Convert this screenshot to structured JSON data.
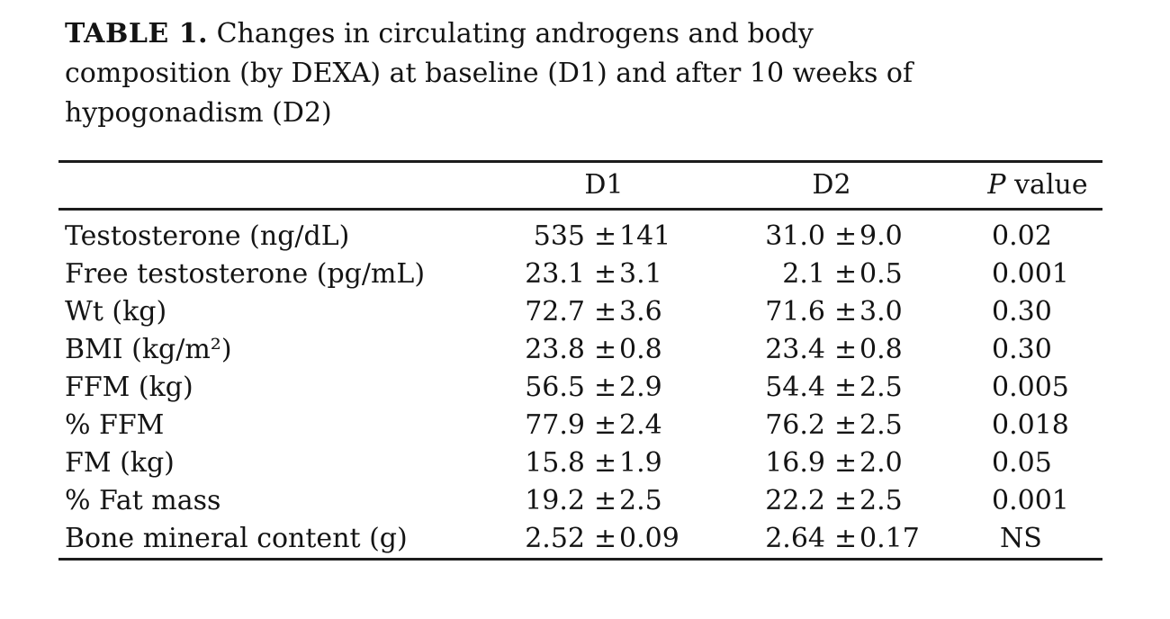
{
  "table": {
    "label": "TABLE 1.",
    "caption_lines": [
      "Changes in circulating androgens and body",
      "composition (by DEXA) at baseline (D1) and after 10 weeks of",
      "hypogonadism (D2)"
    ],
    "header": {
      "d1": "D1",
      "d2": "D2",
      "p_italic": "P",
      "p_rest": " value"
    },
    "plus_minus": "±",
    "rows": [
      {
        "label": "Testosterone (ng/dL)",
        "d1_mean": "535",
        "d1_sd": "141",
        "d2_mean": "31.0",
        "d2_sd": "9.0",
        "p": "0.02"
      },
      {
        "label": "Free testosterone (pg/mL)",
        "d1_mean": "23.1",
        "d1_sd": "3.1",
        "d2_mean": "2.1",
        "d2_sd": "0.5",
        "p": "0.001"
      },
      {
        "label": "Wt (kg)",
        "d1_mean": "72.7",
        "d1_sd": "3.6",
        "d2_mean": "71.6",
        "d2_sd": "3.0",
        "p": "0.30"
      },
      {
        "label": "BMI (kg/m²)",
        "d1_mean": "23.8",
        "d1_sd": "0.8",
        "d2_mean": "23.4",
        "d2_sd": "0.8",
        "p": "0.30"
      },
      {
        "label": "FFM (kg)",
        "d1_mean": "56.5",
        "d1_sd": "2.9",
        "d2_mean": "54.4",
        "d2_sd": "2.5",
        "p": "0.005"
      },
      {
        "label": "% FFM",
        "d1_mean": "77.9",
        "d1_sd": "2.4",
        "d2_mean": "76.2",
        "d2_sd": "2.5",
        "p": "0.018"
      },
      {
        "label": "FM (kg)",
        "d1_mean": "15.8",
        "d1_sd": "1.9",
        "d2_mean": "16.9",
        "d2_sd": "2.0",
        "p": "0.05"
      },
      {
        "label": "% Fat mass",
        "d1_mean": "19.2",
        "d1_sd": "2.5",
        "d2_mean": "22.2",
        "d2_sd": "2.5",
        "p": "0.001"
      },
      {
        "label": "Bone mineral content (g)",
        "d1_mean": "2.52",
        "d1_sd": "0.09",
        "d2_mean": "2.64",
        "d2_sd": "0.17",
        "p": "NS"
      }
    ],
    "colors": {
      "text": "#141414",
      "rule": "#1c1c1c",
      "background": "#ffffff"
    }
  }
}
